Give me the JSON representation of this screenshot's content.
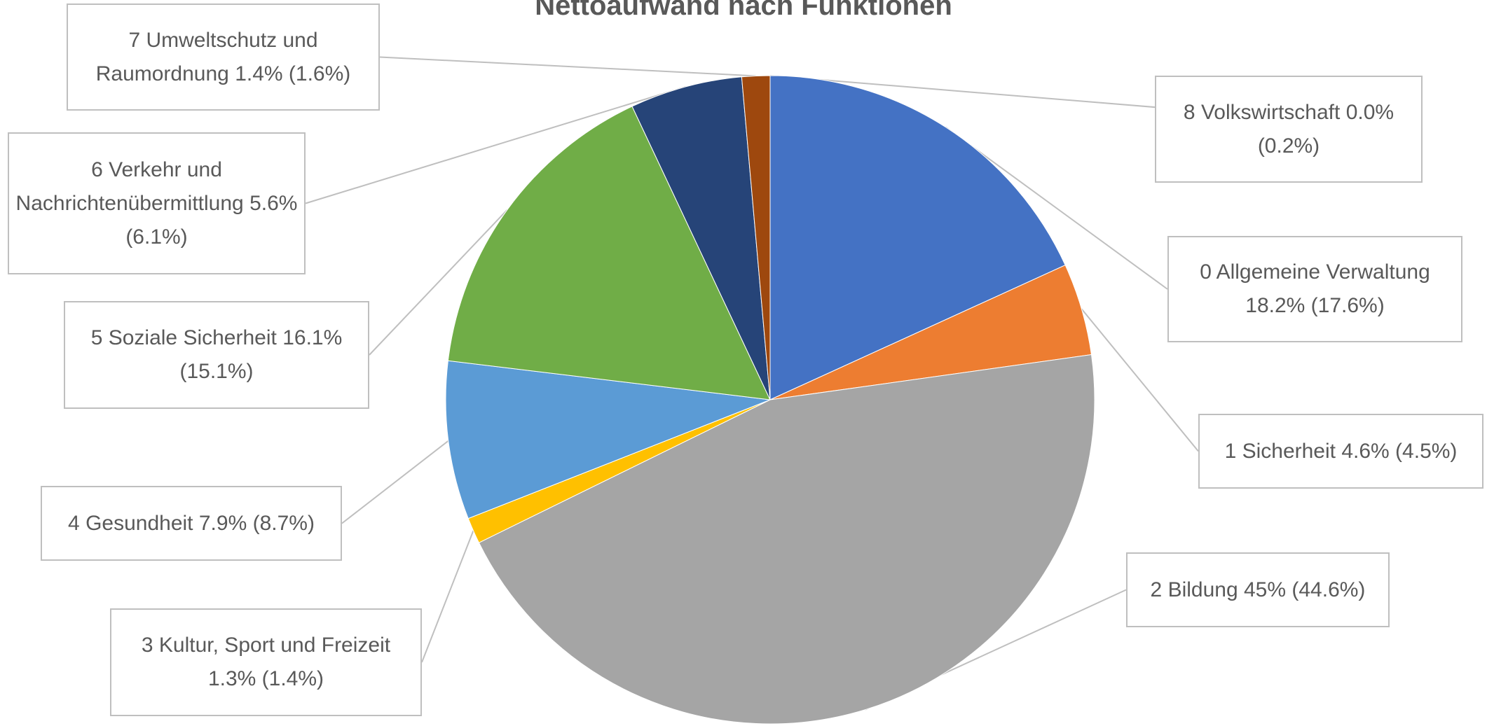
{
  "chart_data": {
    "type": "pie",
    "title": "Nettoaufwand nach Funktionen",
    "categories": [
      "0 Allgemeine Verwaltung",
      "1 Sicherheit",
      "2 Bildung",
      "3 Kultur, Sport und Freizeit",
      "4 Gesundheit",
      "5 Soziale Sicherheit",
      "6 Verkehr und Nachrichtenübermittlung",
      "7 Umweltschutz und Raumordnung",
      "8 Volkswirtschaft"
    ],
    "values": [
      18.2,
      4.6,
      45,
      1.3,
      7.9,
      16.1,
      5.6,
      1.4,
      0.0
    ],
    "value_labels": [
      "18.2% (17.6%)",
      "4.6% (4.5%)",
      "45% (44.6%)",
      "1.3% (1.4%)",
      "7.9% (8.7%)",
      "16.1% (15.1%)",
      "5.6% (6.1%)",
      "1.4% (1.6%)",
      "0.0% (0.2%)"
    ],
    "colors": [
      "#4472c4",
      "#ed7d31",
      "#a5a5a5",
      "#ffc000",
      "#5b9bd5",
      "#70ad47",
      "#264478",
      "#9e480e",
      "#636363"
    ]
  }
}
